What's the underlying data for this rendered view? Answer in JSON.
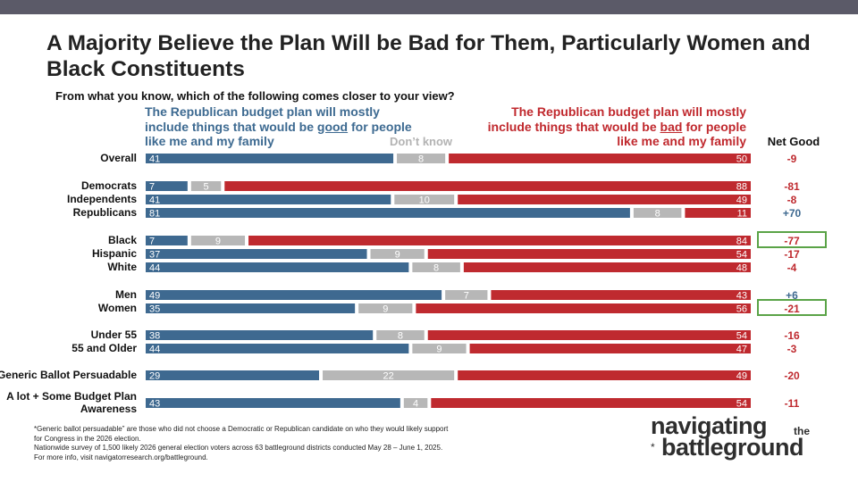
{
  "title": "A Majority Believe the Plan Will be Bad for Them, Particularly Women and Black Constituents",
  "question": "From what you know, which of the following comes closer to your view?",
  "headers": {
    "good_pre": "The Republican budget plan will mostly include things that would be ",
    "good_word": "good",
    "good_post": " for people like me and my family",
    "dont_know": "Don’t know",
    "bad_pre": "The Republican budget plan will mostly include things that would be ",
    "bad_word": "bad",
    "bad_post": " for people like me and my family",
    "net_good": "Net Good"
  },
  "colors": {
    "good": "#3e6990",
    "dont_know": "#b7b7b7",
    "bad": "#bf2a2f",
    "net_positive": "#3e6990",
    "net_negative": "#bf2a2f",
    "highlight_box": "#5aa347"
  },
  "chart_data": {
    "type": "bar",
    "stacked": true,
    "orientation": "horizontal",
    "series": [
      "Good",
      "Don’t know",
      "Bad"
    ],
    "rows": [
      {
        "label": "Overall",
        "label_lines": [
          "Overall"
        ],
        "good": 41,
        "dk": 8,
        "bad": 50,
        "net": "-9",
        "highlight": false
      },
      {
        "label": "Democrats",
        "label_lines": [
          "Democrats"
        ],
        "good": 7,
        "dk": 5,
        "bad": 88,
        "net": "-81",
        "highlight": false
      },
      {
        "label": "Independents",
        "label_lines": [
          "Independents"
        ],
        "good": 41,
        "dk": 10,
        "bad": 49,
        "net": "-8",
        "highlight": false
      },
      {
        "label": "Republicans",
        "label_lines": [
          "Republicans"
        ],
        "good": 81,
        "dk": 8,
        "bad": 11,
        "net": "+70",
        "highlight": false
      },
      {
        "label": "Black",
        "label_lines": [
          "Black"
        ],
        "good": 7,
        "dk": 9,
        "bad": 84,
        "net": "-77",
        "highlight": true
      },
      {
        "label": "Hispanic",
        "label_lines": [
          "Hispanic"
        ],
        "good": 37,
        "dk": 9,
        "bad": 54,
        "net": "-17",
        "highlight": false
      },
      {
        "label": "White",
        "label_lines": [
          "White"
        ],
        "good": 44,
        "dk": 8,
        "bad": 48,
        "net": "-4",
        "highlight": false
      },
      {
        "label": "Men",
        "label_lines": [
          "Men"
        ],
        "good": 49,
        "dk": 7,
        "bad": 43,
        "net": "+6",
        "highlight": false
      },
      {
        "label": "Women",
        "label_lines": [
          "Women"
        ],
        "good": 35,
        "dk": 9,
        "bad": 56,
        "net": "-21",
        "highlight": true
      },
      {
        "label": "Under 55",
        "label_lines": [
          "Under 55"
        ],
        "good": 38,
        "dk": 8,
        "bad": 54,
        "net": "-16",
        "highlight": false
      },
      {
        "label": "55 and Older",
        "label_lines": [
          "55 and Older"
        ],
        "good": 44,
        "dk": 9,
        "bad": 47,
        "net": "-3",
        "highlight": false
      },
      {
        "label": "Generic Ballot Persuadable",
        "label_lines": [
          "Generic Ballot Persuadable"
        ],
        "good": 29,
        "dk": 22,
        "bad": 49,
        "net": "-20",
        "highlight": false
      },
      {
        "label": "A lot + Some Budget Plan Awareness",
        "label_lines": [
          "A lot + Some Budget Plan",
          "Awareness"
        ],
        "good": 43,
        "dk": 4,
        "bad": 54,
        "net": "-11",
        "highlight": false
      }
    ]
  },
  "footnote": [
    "*Generic ballot persuadable” are those who did not choose a Democratic or Republican candidate on who they would likely support",
    "for Congress in the 2026 election.",
    "Nationwide survey of 1,500 likely 2026 general election voters across 63 battleground districts conducted May 28 – June 1, 2025.",
    "For more info, visit navigatorresearch.org/battleground."
  ],
  "logo": {
    "line1": "navigating",
    "small": "the",
    "line2": "battleground",
    "star": "*"
  }
}
